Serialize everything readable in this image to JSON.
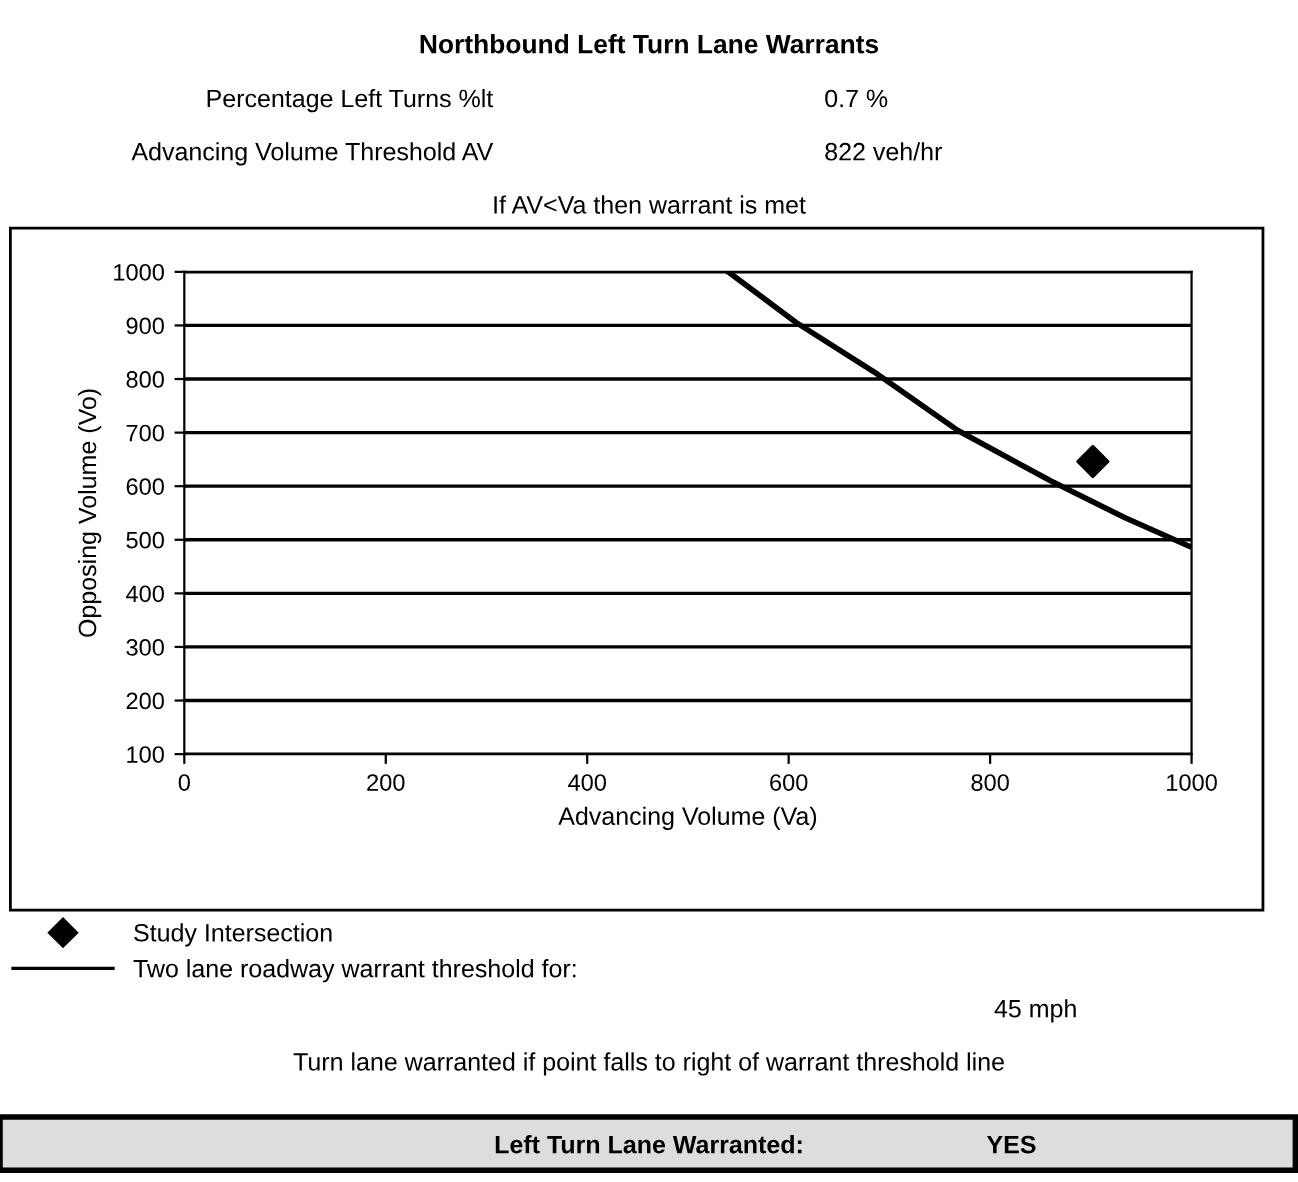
{
  "chart_data": {
    "type": "line",
    "title": "Northbound Left Turn Lane Warrants",
    "xlabel": "Advancing Volume (Va)",
    "ylabel": "Opposing Volume (Vo)",
    "xlim": [
      0,
      1000
    ],
    "xticks": [
      0,
      200,
      400,
      600,
      800,
      1000
    ],
    "ylim": [
      100,
      1000
    ],
    "yticks": [
      100,
      200,
      300,
      400,
      500,
      600,
      700,
      800,
      900,
      1000
    ],
    "grid": "y",
    "legend": "bottom",
    "series": [
      {
        "name": "Two lane roadway warrant threshold for:",
        "color": "#000000",
        "marker": "none",
        "line_style": "solid",
        "x": [
          540,
          607,
          685,
          768,
          859,
          934,
          1000
        ],
        "values": [
          1000,
          906,
          813,
          704,
          611,
          541,
          486
        ]
      },
      {
        "name": "Study Intersection",
        "type": "scatter",
        "color": "#000000",
        "marker": "diamond",
        "x": [
          902
        ],
        "values": [
          646
        ]
      }
    ],
    "annotations": [
      "Percentage Left Turns %lt",
      "0.7 %",
      "Advancing Volume Threshold AV",
      "822 veh/hr",
      "If AV<Va then warrant is met",
      "45 mph",
      "Turn lane warranted if point falls to right of warrant threshold line",
      "Left Turn Lane Warranted:",
      "YES"
    ]
  }
}
